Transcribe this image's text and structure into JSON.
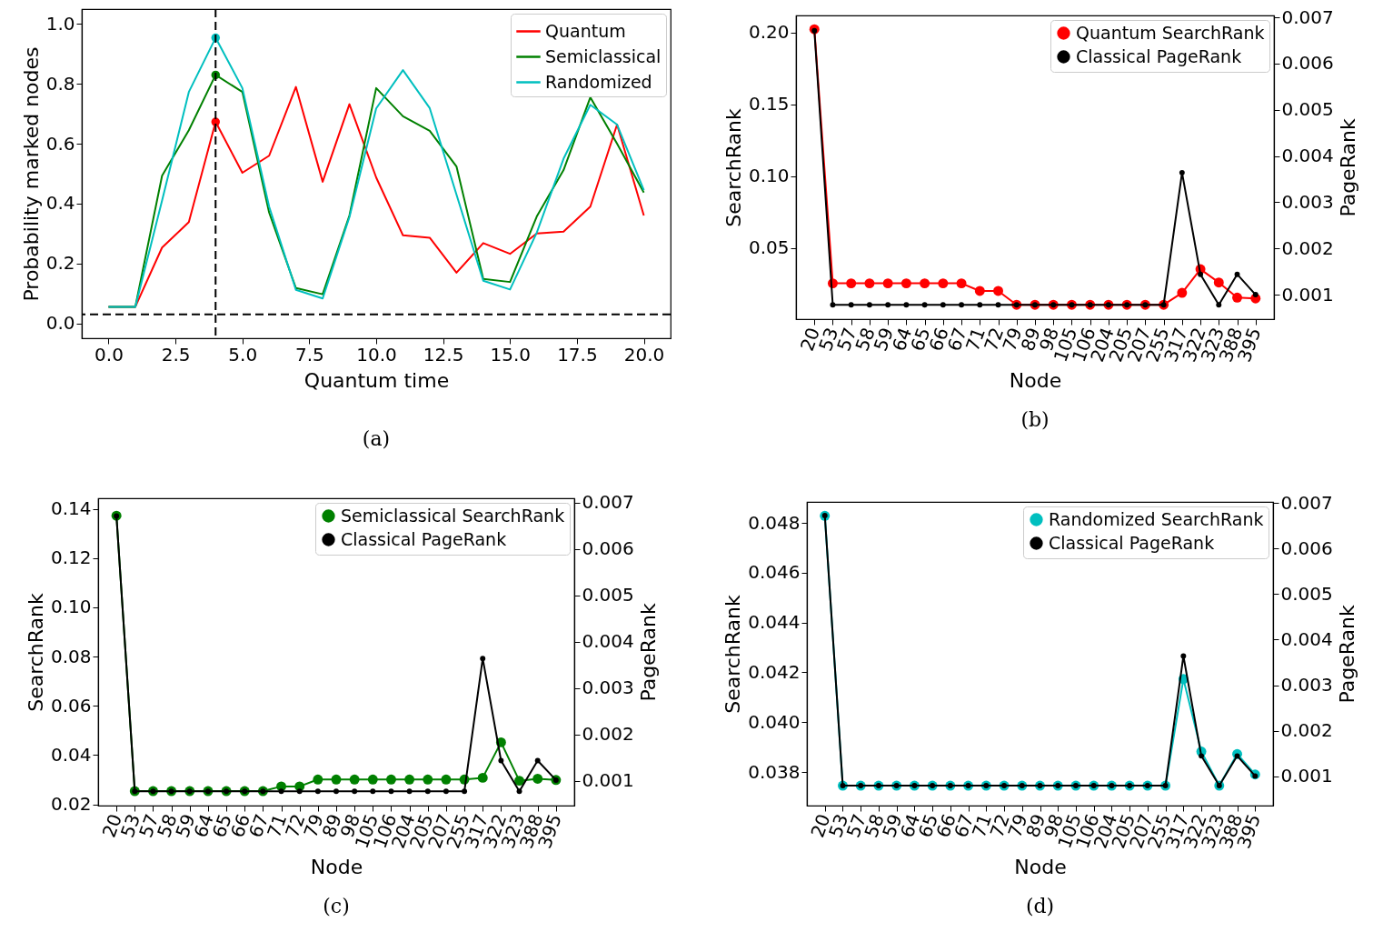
{
  "chart_data": [
    {
      "type": "line",
      "xlabel": "Quantum time",
      "ylabel": "Probability marked nodes",
      "x": [
        0,
        1,
        2,
        3,
        4,
        5,
        6,
        7,
        8,
        9,
        10,
        11,
        12,
        13,
        14,
        15,
        16,
        17,
        18,
        19,
        20
      ],
      "series": [
        {
          "name": "Quantum",
          "color": "#ff0000",
          "values": [
            0.055,
            0.055,
            0.253,
            0.338,
            0.673,
            0.503,
            0.56,
            0.79,
            0.473,
            0.732,
            0.487,
            0.294,
            0.286,
            0.169,
            0.268,
            0.232,
            0.3,
            0.306,
            0.39,
            0.664,
            0.36
          ]
        },
        {
          "name": "Semiclassical",
          "color": "#008000",
          "values": [
            0.055,
            0.055,
            0.493,
            0.645,
            0.83,
            0.773,
            0.37,
            0.118,
            0.097,
            0.36,
            0.786,
            0.692,
            0.643,
            0.524,
            0.148,
            0.138,
            0.357,
            0.512,
            0.755,
            0.6,
            0.437
          ]
        },
        {
          "name": "Randomized",
          "color": "#00bfbf",
          "values": [
            0.055,
            0.055,
            0.41,
            0.773,
            0.954,
            0.786,
            0.39,
            0.112,
            0.083,
            0.355,
            0.718,
            0.846,
            0.719,
            0.43,
            0.142,
            0.113,
            0.303,
            0.55,
            0.73,
            0.664,
            0.445
          ]
        },
        {
          "type": "scatter",
          "color": "#ff0000",
          "values": [
            null,
            null,
            null,
            null,
            0.673,
            null,
            null,
            null,
            null,
            null,
            null,
            null,
            null,
            null,
            null,
            null,
            null,
            null,
            null,
            null,
            null
          ],
          "marker": "circle"
        },
        {
          "type": "scatter",
          "color": "#008000",
          "values": [
            null,
            null,
            null,
            null,
            0.83,
            null,
            null,
            null,
            null,
            null,
            null,
            null,
            null,
            null,
            null,
            null,
            null,
            null,
            null,
            null,
            null
          ],
          "marker": "circle"
        },
        {
          "type": "scatter",
          "color": "#00bfbf",
          "values": [
            null,
            null,
            null,
            null,
            0.954,
            null,
            null,
            null,
            null,
            null,
            null,
            null,
            null,
            null,
            null,
            null,
            null,
            null,
            null,
            null,
            null
          ],
          "marker": "circle"
        }
      ],
      "xlim": [
        -1,
        21
      ],
      "xticks": [
        {
          "value": 0,
          "label": "0.0"
        },
        2.5,
        {
          "value": 5,
          "label": "5.0"
        },
        7.5,
        {
          "value": 10,
          "label": "10.0"
        },
        12.5,
        {
          "value": 15,
          "label": "15.0"
        },
        17.5,
        {
          "value": 20,
          "label": "20.0"
        }
      ],
      "ylim": [
        -0.05,
        1.05
      ],
      "yticks": [
        {
          "value": 0,
          "label": "0.0"
        },
        0.2,
        0.4,
        0.6,
        0.8,
        {
          "value": 1,
          "label": "1.0"
        }
      ],
      "ref_lines": [
        {
          "axis": "x",
          "value": 4,
          "color": "#000000",
          "line_style": "dashed"
        },
        {
          "axis": "y",
          "value": 0.03,
          "color": "#000000",
          "line_style": "dashed"
        }
      ],
      "legend": "top right",
      "marker": "none",
      "annotations": [
        "(a)"
      ]
    },
    {
      "type": "line",
      "xlabel": "Node",
      "ylabel": "SearchRank",
      "y2label": "PageRank",
      "categories": [
        "20",
        "53",
        "57",
        "58",
        "59",
        "64",
        "65",
        "66",
        "67",
        "71",
        "72",
        "79",
        "89",
        "98",
        "105",
        "106",
        "204",
        "205",
        "207",
        "255",
        "317",
        "322",
        "323",
        "388",
        "395"
      ],
      "series": [
        {
          "name": "Quantum SearchRank",
          "color": "#ff0000",
          "values": [
            0.2022,
            0.0256,
            0.0256,
            0.0256,
            0.0256,
            0.0256,
            0.0256,
            0.0256,
            0.0256,
            0.0203,
            0.0203,
            0.0107,
            0.0107,
            0.0107,
            0.0107,
            0.0107,
            0.0107,
            0.0107,
            0.0107,
            0.0107,
            0.019,
            0.0354,
            0.0262,
            0.0157,
            0.0151
          ]
        },
        {
          "name": "Classical PageRank",
          "color": "#000000",
          "axis": "y2",
          "values": [
            0.00671,
            0.00078,
            0.00078,
            0.00078,
            0.00078,
            0.00078,
            0.00078,
            0.00078,
            0.00078,
            0.00078,
            0.00078,
            0.00078,
            0.00078,
            0.00078,
            0.00078,
            0.00078,
            0.00078,
            0.00078,
            0.00078,
            0.00078,
            0.00364,
            0.00144,
            0.00078,
            0.00144,
            0.001
          ]
        }
      ],
      "ylim": [
        0.0007,
        0.2118
      ],
      "yticks": [
        0.05,
        {
          "value": 0.1,
          "label": "0.10"
        },
        0.15,
        {
          "value": 0.2,
          "label": "0.20"
        }
      ],
      "y2lim": [
        0.00047,
        0.00704
      ],
      "y2ticks": [
        0.001,
        0.002,
        0.003,
        0.004,
        0.005,
        0.006,
        0.007
      ],
      "legend": "top right",
      "marker": "circle",
      "annotations": [
        "(b)"
      ]
    },
    {
      "type": "line",
      "xlabel": "Node",
      "ylabel": "SearchRank",
      "y2label": "PageRank",
      "categories": [
        "20",
        "53",
        "57",
        "58",
        "59",
        "64",
        "65",
        "66",
        "67",
        "71",
        "72",
        "79",
        "89",
        "98",
        "105",
        "106",
        "204",
        "205",
        "207",
        "255",
        "317",
        "322",
        "323",
        "388",
        "395"
      ],
      "series": [
        {
          "name": "Semiclassical SearchRank",
          "color": "#008000",
          "values": [
            0.1372,
            0.0254,
            0.0254,
            0.0254,
            0.0254,
            0.0254,
            0.0254,
            0.0254,
            0.0254,
            0.0273,
            0.0273,
            0.0301,
            0.0301,
            0.0301,
            0.0301,
            0.0301,
            0.0301,
            0.0301,
            0.0301,
            0.0301,
            0.0308,
            0.0452,
            0.0296,
            0.0304,
            0.0299
          ]
        },
        {
          "name": "Classical PageRank",
          "color": "#000000",
          "axis": "y2",
          "values": [
            0.00671,
            0.00078,
            0.00078,
            0.00078,
            0.00078,
            0.00078,
            0.00078,
            0.00078,
            0.00078,
            0.00078,
            0.00078,
            0.00078,
            0.00078,
            0.00078,
            0.00078,
            0.00078,
            0.00078,
            0.00078,
            0.00078,
            0.00078,
            0.00364,
            0.00144,
            0.00078,
            0.00144,
            0.00102
          ]
        }
      ],
      "ylim": [
        0.0195,
        0.1443
      ],
      "yticks": [
        0.02,
        0.04,
        0.06,
        0.08,
        {
          "value": 0.1,
          "label": "0.10"
        },
        0.12,
        0.14
      ],
      "y2lim": [
        0.00047,
        0.00709
      ],
      "y2ticks": [
        0.001,
        0.002,
        0.003,
        0.004,
        0.005,
        0.006,
        0.007
      ],
      "legend": "top right",
      "marker": "circle",
      "annotations": [
        "(c)"
      ]
    },
    {
      "type": "line",
      "xlabel": "Node",
      "ylabel": "SearchRank",
      "y2label": "PageRank",
      "categories": [
        "20",
        "53",
        "57",
        "58",
        "59",
        "64",
        "65",
        "66",
        "67",
        "71",
        "72",
        "79",
        "89",
        "98",
        "105",
        "106",
        "204",
        "205",
        "207",
        "255",
        "317",
        "322",
        "323",
        "388",
        "395"
      ],
      "series": [
        {
          "name": "Randomized SearchRank",
          "color": "#00bfbf",
          "values": [
            0.04828,
            0.03745,
            0.03745,
            0.03745,
            0.03745,
            0.03745,
            0.03745,
            0.03745,
            0.03745,
            0.03745,
            0.03745,
            0.03745,
            0.03745,
            0.03745,
            0.03745,
            0.03745,
            0.03745,
            0.03745,
            0.03745,
            0.03745,
            0.04173,
            0.03882,
            0.03745,
            0.03872,
            0.0379
          ]
        },
        {
          "name": "Classical PageRank",
          "color": "#000000",
          "axis": "y2",
          "values": [
            0.00672,
            0.0008,
            0.0008,
            0.0008,
            0.0008,
            0.0008,
            0.0008,
            0.0008,
            0.0008,
            0.0008,
            0.0008,
            0.0008,
            0.0008,
            0.0008,
            0.0008,
            0.0008,
            0.0008,
            0.0008,
            0.0008,
            0.0008,
            0.00364,
            0.00145,
            0.0008,
            0.00145,
            0.00101
          ]
        }
      ],
      "ylim": [
        0.03665,
        0.04884
      ],
      "yticks": [
        0.038,
        {
          "value": 0.04,
          "label": "0.040"
        },
        0.042,
        0.044,
        0.046,
        0.048
      ],
      "y2lim": [
        0.00036,
        0.00702
      ],
      "y2ticks": [
        0.001,
        0.002,
        0.003,
        0.004,
        0.005,
        0.006,
        0.007
      ],
      "legend": "top right",
      "marker": "circle",
      "annotations": [
        "(d)"
      ]
    }
  ]
}
